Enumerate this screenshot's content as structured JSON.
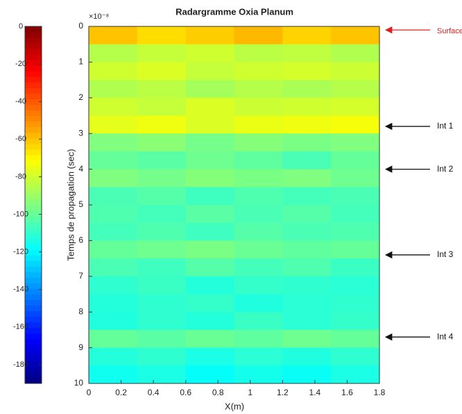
{
  "chart_data": {
    "type": "heatmap",
    "title": "Radargramme Oxia Planum",
    "x_label": "X(m)",
    "y_label": "Temps de propagation (sec)",
    "y_exponent": "×10⁻⁸",
    "xlim": [
      0,
      1.8
    ],
    "xticks": [
      0,
      0.2,
      0.4,
      0.6,
      0.8,
      1,
      1.2,
      1.4,
      1.6,
      1.8
    ],
    "ylim": [
      0,
      10
    ],
    "yticks": [
      0,
      1,
      2,
      3,
      4,
      5,
      6,
      7,
      8,
      9,
      10
    ],
    "y_reversed": true,
    "colormap": "jet",
    "clim": [
      -190,
      0
    ],
    "colorbar_ticks": [
      0,
      -20,
      -40,
      -60,
      -80,
      -100,
      -120,
      -140,
      -160,
      -180
    ],
    "z": [
      [
        -60,
        -65,
        -62,
        -58,
        -63,
        -60
      ],
      [
        -85,
        -82,
        -80,
        -84,
        -83,
        -86
      ],
      [
        -80,
        -78,
        -82,
        -80,
        -79,
        -81
      ],
      [
        -86,
        -84,
        -88,
        -85,
        -87,
        -85
      ],
      [
        -80,
        -82,
        -78,
        -81,
        -80,
        -79
      ],
      [
        -76,
        -74,
        -78,
        -75,
        -74,
        -73
      ],
      [
        -95,
        -93,
        -97,
        -94,
        -96,
        -95
      ],
      [
        -100,
        -102,
        -98,
        -101,
        -105,
        -100
      ],
      [
        -95,
        -97,
        -94,
        -96,
        -95,
        -98
      ],
      [
        -105,
        -103,
        -107,
        -104,
        -106,
        -105
      ],
      [
        -104,
        -106,
        -102,
        -105,
        -103,
        -106
      ],
      [
        -106,
        -104,
        -107,
        -103,
        -105,
        -104
      ],
      [
        -100,
        -98,
        -96,
        -99,
        -101,
        -100
      ],
      [
        -105,
        -107,
        -103,
        -106,
        -104,
        -108
      ],
      [
        -110,
        -108,
        -112,
        -109,
        -110,
        -111
      ],
      [
        -112,
        -110,
        -109,
        -113,
        -111,
        -110
      ],
      [
        -113,
        -110,
        -112,
        -108,
        -111,
        -109
      ],
      [
        -100,
        -102,
        -99,
        -101,
        -98,
        -100
      ],
      [
        -112,
        -110,
        -114,
        -111,
        -113,
        -110
      ],
      [
        -116,
        -114,
        -118,
        -115,
        -117,
        -114
      ]
    ],
    "annotations": [
      {
        "text": "Surface",
        "y": 0.1,
        "color": "#e02020"
      },
      {
        "text": "Int 1",
        "y": 2.8,
        "color": "#111111"
      },
      {
        "text": "Int 2",
        "y": 4.0,
        "color": "#111111"
      },
      {
        "text": "Int 3",
        "y": 6.4,
        "color": "#111111"
      },
      {
        "text": "Int 4",
        "y": 8.7,
        "color": "#111111"
      }
    ]
  }
}
